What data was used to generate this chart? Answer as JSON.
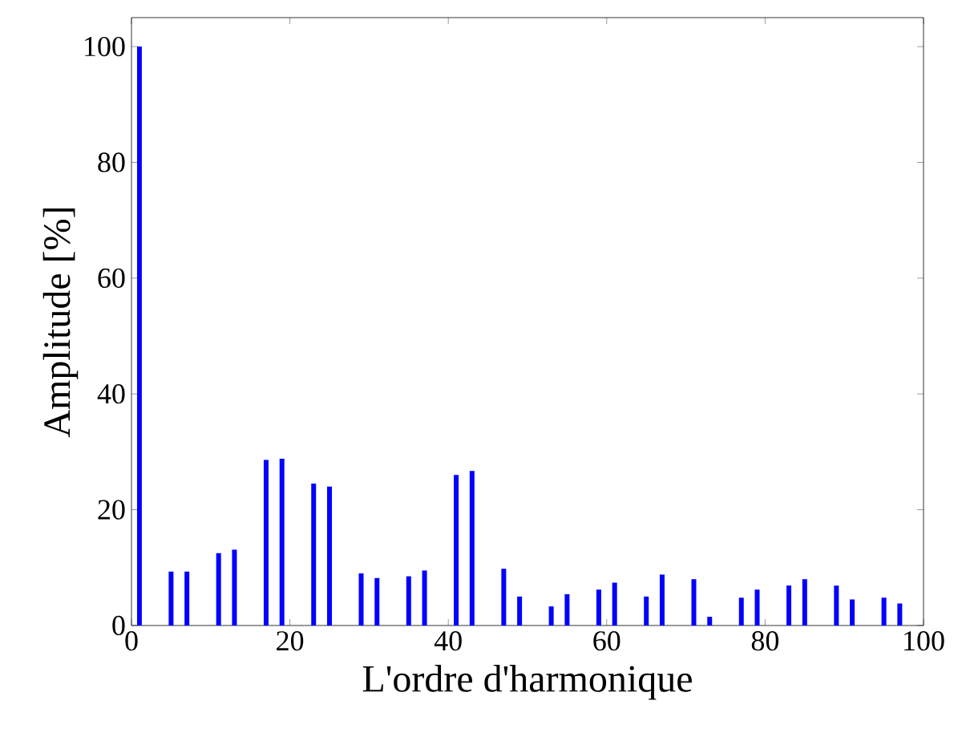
{
  "chart_data": {
    "type": "bar",
    "xlabel": "L'ordre d'harmonique",
    "ylabel": "Amplitude [%]",
    "x": [
      1,
      5,
      7,
      11,
      13,
      17,
      19,
      23,
      25,
      29,
      31,
      35,
      37,
      41,
      43,
      47,
      49,
      53,
      55,
      59,
      61,
      65,
      67,
      71,
      73,
      77,
      79,
      83,
      85,
      89,
      91,
      95,
      97
    ],
    "values": [
      100,
      9.3,
      9.3,
      12.5,
      13.1,
      28.6,
      28.8,
      24.5,
      24.0,
      9.0,
      8.2,
      8.5,
      9.5,
      26.0,
      26.7,
      9.8,
      5.0,
      3.3,
      5.4,
      6.2,
      7.4,
      5.0,
      8.8,
      8.0,
      1.5,
      4.8,
      6.2,
      6.9,
      8.0,
      6.9,
      4.5,
      4.8,
      3.8
    ],
    "color": "#0000ff",
    "xlim": [
      0,
      100
    ],
    "xticks": [
      0,
      20,
      40,
      60,
      80,
      100
    ],
    "ylim": [
      0,
      105
    ],
    "yticks": [
      0,
      20,
      40,
      60,
      80,
      100
    ]
  }
}
